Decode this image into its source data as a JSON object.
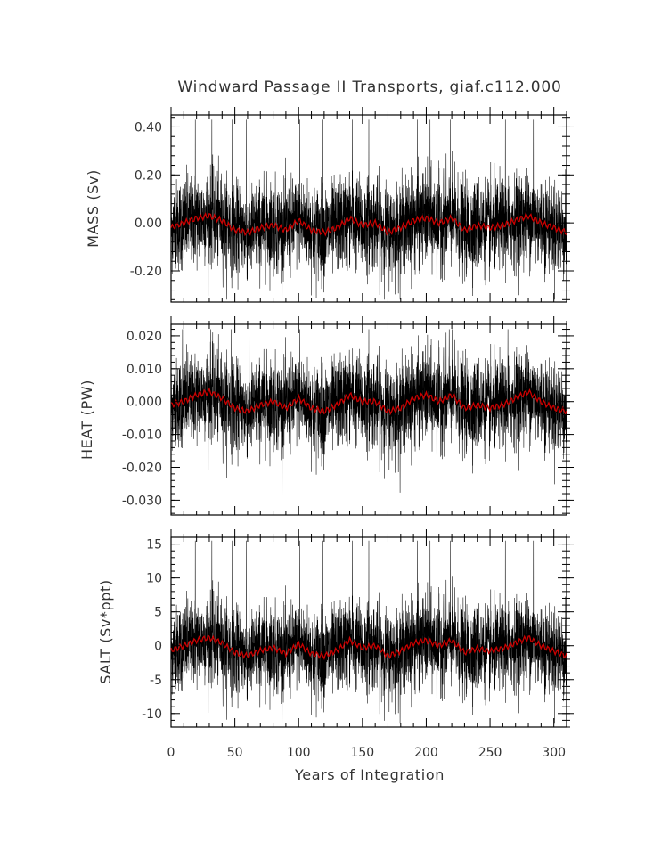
{
  "title": "Windward Passage II Transports, giaf.c112.000",
  "x_axis": {
    "label": "Years of Integration",
    "ticks": [
      "0",
      "50",
      "100",
      "150",
      "200",
      "250",
      "300"
    ]
  },
  "panels": [
    {
      "ylabel": "MASS (Sv)",
      "ticks": [
        "0.40",
        "0.20",
        "0.00",
        "-0.20"
      ]
    },
    {
      "ylabel": "HEAT (PW)",
      "ticks": [
        "0.020",
        "0.010",
        "0.000",
        "-0.010",
        "-0.020",
        "-0.030"
      ]
    },
    {
      "ylabel": "SALT (Sv*ppt)",
      "ticks": [
        "15",
        "10",
        "5",
        "0",
        "-5",
        "-10"
      ]
    }
  ],
  "colors": {
    "monthly_series": "#000000",
    "smoothed_series": "#cc0000"
  },
  "chart_data": [
    {
      "type": "line",
      "xlabel": "Years of Integration",
      "ylabel": "MASS (Sv)",
      "xlim": [
        0,
        310
      ],
      "ylim": [
        -0.33,
        0.45
      ],
      "yticks": [
        -0.2,
        0.0,
        0.2,
        0.4
      ],
      "xticks": [
        0,
        50,
        100,
        150,
        200,
        250,
        300
      ],
      "series": [
        {
          "style": "thin black line, high-frequency (monthly) transport",
          "typical_range": [
            -0.2,
            0.22
          ],
          "extreme_min": -0.32,
          "extreme_max": 0.43,
          "peak_years": [
            19,
            32,
            48,
            59,
            80,
            101,
            119,
            142,
            155,
            193,
            203,
            219,
            262,
            284
          ]
        },
        {
          "style": "red line, smoothed (annual) transport",
          "x": [
            0,
            10,
            20,
            30,
            40,
            50,
            60,
            70,
            80,
            90,
            100,
            110,
            120,
            130,
            140,
            150,
            160,
            170,
            180,
            190,
            200,
            210,
            220,
            230,
            240,
            250,
            260,
            270,
            280,
            290,
            300,
            310
          ],
          "y": [
            -0.02,
            0.0,
            0.02,
            0.03,
            0.01,
            -0.03,
            -0.04,
            -0.02,
            -0.01,
            -0.03,
            0.01,
            -0.03,
            -0.04,
            -0.02,
            0.02,
            -0.01,
            0.0,
            -0.04,
            -0.02,
            0.01,
            0.02,
            0.0,
            0.02,
            -0.03,
            -0.01,
            -0.02,
            -0.01,
            0.01,
            0.03,
            0.0,
            -0.02,
            -0.04
          ]
        }
      ]
    },
    {
      "type": "line",
      "xlabel": "Years of Integration",
      "ylabel": "HEAT (PW)",
      "xlim": [
        0,
        310
      ],
      "ylim": [
        -0.0345,
        0.0235
      ],
      "yticks": [
        -0.03,
        -0.02,
        -0.01,
        0.0,
        0.01,
        0.02
      ],
      "xticks": [
        0,
        50,
        100,
        150,
        200,
        250,
        300
      ],
      "series": [
        {
          "style": "thin black line, high-frequency (monthly) transport",
          "typical_range": [
            -0.015,
            0.015
          ],
          "extreme_min": -0.034,
          "extreme_max": 0.022,
          "peak_years": [
            9,
            31,
            47,
            80,
            101,
            155,
            218,
            264
          ]
        },
        {
          "style": "red line, smoothed (annual) transport",
          "x": [
            0,
            10,
            20,
            30,
            40,
            50,
            60,
            70,
            80,
            90,
            100,
            110,
            120,
            130,
            140,
            150,
            160,
            170,
            180,
            190,
            200,
            210,
            220,
            230,
            240,
            250,
            260,
            270,
            280,
            290,
            300,
            310
          ],
          "y": [
            -0.001,
            0.0,
            0.002,
            0.003,
            0.001,
            -0.002,
            -0.003,
            -0.001,
            0.0,
            -0.002,
            0.001,
            -0.002,
            -0.003,
            -0.001,
            0.002,
            0.0,
            0.0,
            -0.003,
            -0.002,
            0.001,
            0.002,
            0.0,
            0.002,
            -0.002,
            -0.001,
            -0.002,
            -0.001,
            0.001,
            0.003,
            0.0,
            -0.002,
            -0.003
          ]
        }
      ]
    },
    {
      "type": "line",
      "xlabel": "Years of Integration",
      "ylabel": "SALT (Sv*ppt)",
      "xlim": [
        0,
        310
      ],
      "ylim": [
        -12,
        16
      ],
      "yticks": [
        -10,
        -5,
        0,
        5,
        10,
        15
      ],
      "xticks": [
        0,
        50,
        100,
        150,
        200,
        250,
        300
      ],
      "series": [
        {
          "style": "thin black line, high-frequency (monthly) transport",
          "typical_range": [
            -7,
            7
          ],
          "extreme_min": -11.5,
          "extreme_max": 15.5,
          "peak_years": [
            19,
            32,
            48,
            59,
            80,
            101,
            119,
            142,
            155,
            193,
            203,
            219,
            262,
            284
          ]
        },
        {
          "style": "red line, smoothed (annual) transport",
          "x": [
            0,
            10,
            20,
            30,
            40,
            50,
            60,
            70,
            80,
            90,
            100,
            110,
            120,
            130,
            140,
            150,
            160,
            170,
            180,
            190,
            200,
            210,
            220,
            230,
            240,
            250,
            260,
            270,
            280,
            290,
            300,
            310
          ],
          "y": [
            -0.7,
            0.0,
            0.8,
            1.2,
            0.4,
            -1.0,
            -1.5,
            -0.7,
            -0.3,
            -1.2,
            0.3,
            -1.2,
            -1.5,
            -0.7,
            0.8,
            -0.3,
            0.0,
            -1.5,
            -0.8,
            0.4,
            0.8,
            0.0,
            0.8,
            -1.0,
            -0.4,
            -0.8,
            -0.4,
            0.4,
            1.2,
            0.0,
            -0.8,
            -1.5
          ]
        }
      ]
    }
  ]
}
